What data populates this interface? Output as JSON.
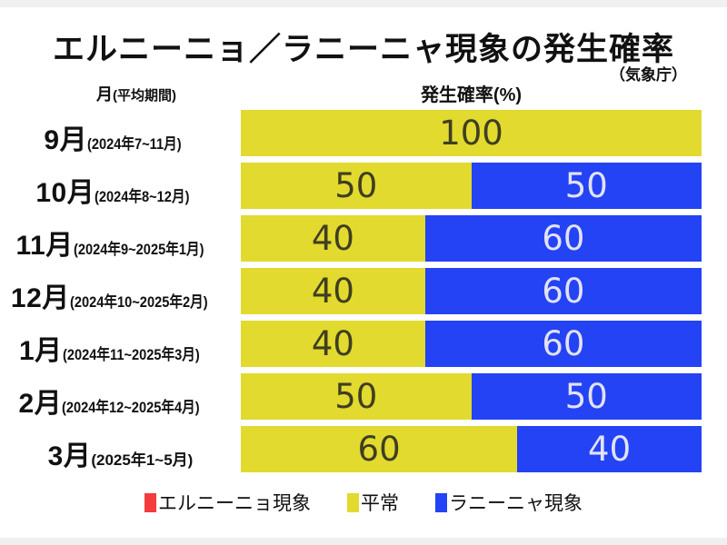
{
  "title": "エルニーニョ／ラニーニャ現象の発生確率",
  "source": "（気象庁）",
  "columns": {
    "month_header": "月",
    "month_header_sub": "(平均期間)",
    "value_header": "発生確率(%)"
  },
  "colors": {
    "elnino": "#f43b3d",
    "normal": "#e2da2e",
    "lanina": "#2343f5",
    "background": "#ffffff"
  },
  "legend": [
    {
      "key": "elnino",
      "label": "エルニーニョ現象"
    },
    {
      "key": "normal",
      "label": "平常"
    },
    {
      "key": "lanina",
      "label": "ラニーニャ現象"
    }
  ],
  "chart_data": {
    "type": "bar",
    "orientation": "horizontal",
    "stacked": true,
    "title": "エルニーニョ／ラニーニャ現象の発生確率",
    "xlabel": "発生確率(%)",
    "ylabel": "月(平均期間)",
    "xlim": [
      0,
      100
    ],
    "grid": false,
    "legend_position": "bottom",
    "categories": [
      "9月",
      "10月",
      "11月",
      "12月",
      "1月",
      "2月",
      "3月"
    ],
    "periods": [
      "(2024年7~11月)",
      "(2024年8~12月)",
      "(2024年9~2025年1月)",
      "(2024年10~2025年2月)",
      "(2024年11~2025年3月)",
      "(2024年12~2025年4月)",
      "(2025年1~5月)"
    ],
    "series": [
      {
        "name": "エルニーニョ現象",
        "key": "elnino",
        "values": [
          0,
          0,
          0,
          0,
          0,
          0,
          0
        ]
      },
      {
        "name": "平常",
        "key": "normal",
        "values": [
          100,
          50,
          40,
          40,
          40,
          50,
          60
        ]
      },
      {
        "name": "ラニーニャ現象",
        "key": "lanina",
        "values": [
          0,
          50,
          60,
          60,
          60,
          50,
          40
        ]
      }
    ]
  }
}
